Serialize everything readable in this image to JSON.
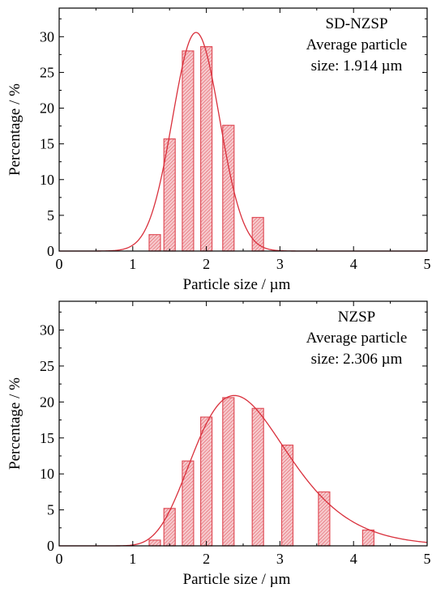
{
  "chart_data": [
    {
      "type": "bar",
      "subtitle_lines": [
        "SD-NZSP",
        "Average particle",
        "size: 1.914 µm"
      ],
      "xlabel": "Particle size / µm",
      "ylabel": "Percentage / %",
      "xlim": [
        0,
        5
      ],
      "ylim": [
        0,
        34
      ],
      "xticks": [
        0,
        1,
        2,
        3,
        4,
        5
      ],
      "yticks": [
        0,
        5,
        10,
        15,
        20,
        25,
        30
      ],
      "grid": false,
      "bar_color": "#e0505a",
      "curve_color": "#d9303c",
      "bars": [
        {
          "x": 1.3,
          "value": 2.3
        },
        {
          "x": 1.5,
          "value": 15.7
        },
        {
          "x": 1.75,
          "value": 28.0
        },
        {
          "x": 2.0,
          "value": 28.6
        },
        {
          "x": 2.3,
          "value": 17.6
        },
        {
          "x": 2.7,
          "value": 4.7
        }
      ],
      "fit": {
        "type": "gaussian",
        "peak": 30.6,
        "center": 1.86,
        "sigma": 0.32
      }
    },
    {
      "type": "bar",
      "subtitle_lines": [
        "NZSP",
        "Average particle",
        "size: 2.306 µm"
      ],
      "xlabel": "Particle size / µm",
      "ylabel": "Percentage / %",
      "xlim": [
        0,
        5
      ],
      "ylim": [
        0,
        34
      ],
      "xticks": [
        0,
        1,
        2,
        3,
        4,
        5
      ],
      "yticks": [
        0,
        5,
        10,
        15,
        20,
        25,
        30
      ],
      "grid": false,
      "bar_color": "#e0505a",
      "curve_color": "#d9303c",
      "bars": [
        {
          "x": 1.3,
          "value": 0.8
        },
        {
          "x": 1.5,
          "value": 5.2
        },
        {
          "x": 1.75,
          "value": 11.8
        },
        {
          "x": 2.0,
          "value": 17.9
        },
        {
          "x": 2.3,
          "value": 20.6
        },
        {
          "x": 2.7,
          "value": 19.1
        },
        {
          "x": 3.1,
          "value": 14.0
        },
        {
          "x": 3.6,
          "value": 7.5
        },
        {
          "x": 4.2,
          "value": 2.2
        }
      ],
      "fit": {
        "type": "lognormal",
        "peak": 20.9,
        "mode": 2.38,
        "sigma": 0.27
      }
    }
  ]
}
